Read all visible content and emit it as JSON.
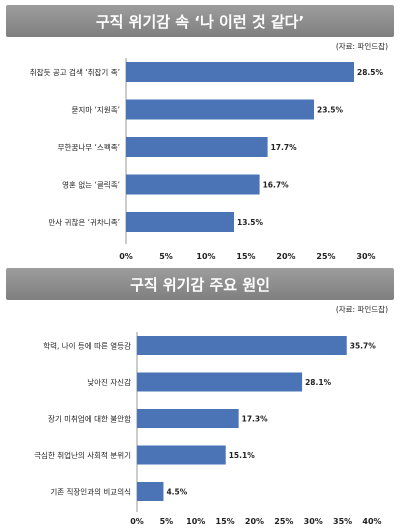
{
  "chart_data": [
    {
      "type": "bar",
      "orientation": "horizontal",
      "title": "구직 위기감 속 ‘나 이런 것 같다’",
      "source": "(자료: 파인드잡)",
      "categories": [
        "취잡듯 공고 검색 ‘취잡기 족’",
        "묻지마 ‘지원족’",
        "무한꿈나무 ‘스펙족’",
        "영혼 없는 ‘클릭족’",
        "만사 귀찮은 ‘귀차니족’"
      ],
      "values": [
        28.5,
        23.5,
        17.7,
        16.7,
        13.5
      ],
      "value_labels": [
        "28.5%",
        "23.5%",
        "17.7%",
        "16.7%",
        "13.5%"
      ],
      "xlim": [
        0,
        30
      ],
      "ticks": [
        "0%",
        "5%",
        "10%",
        "15%",
        "20%",
        "25%",
        "30%"
      ],
      "bar_color": "#4a74b5"
    },
    {
      "type": "bar",
      "orientation": "horizontal",
      "title": "구직 위기감 주요 원인",
      "source": "(자료: 파인드잡)",
      "categories": [
        "학력, 나이 등에 따른 열등감",
        "낮아진 자신감",
        "장기 미취업에 대한 불안함",
        "극심한 취업난의 사회적 분위기",
        "기존 직장인과의 비교의식"
      ],
      "values": [
        35.7,
        28.1,
        17.3,
        15.1,
        4.5
      ],
      "value_labels": [
        "35.7%",
        "28.1%",
        "17.3%",
        "15.1%",
        "4.5%"
      ],
      "xlim": [
        0,
        40
      ],
      "ticks": [
        "0%",
        "5%",
        "10%",
        "15%",
        "20%",
        "25%",
        "30%",
        "35%",
        "40%"
      ],
      "bar_color": "#4a74b5"
    }
  ]
}
